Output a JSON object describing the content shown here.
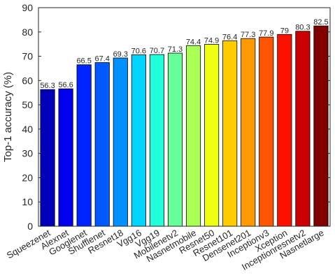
{
  "chart_data": {
    "type": "bar",
    "title": "",
    "xlabel": "",
    "ylabel": "Top-1 accuracy (%)",
    "ylim": [
      0,
      90
    ],
    "yticks": [
      0,
      10,
      20,
      30,
      40,
      50,
      60,
      70,
      80,
      90
    ],
    "grid": false,
    "legend": "none",
    "categories": [
      "Squeezenet",
      "Alexnet",
      "Googlenet",
      "Shufflenet",
      "Resnet18",
      "Vgg16",
      "Vgg19",
      "Mobilenetv2",
      "Nasnetmobile",
      "Resnet50",
      "Resnet101",
      "Densenet201",
      "Inceptionv3",
      "Xception",
      "Inceptionresnetv2",
      "Nasnetlarge"
    ],
    "values": [
      56.3,
      56.6,
      66.5,
      67.4,
      69.3,
      70.6,
      70.7,
      71.3,
      74.4,
      74.9,
      76.4,
      77.3,
      77.9,
      79,
      80.3,
      82.5
    ],
    "value_labels": [
      "56.3",
      "56.6",
      "66.5",
      "67.4",
      "69.3",
      "70.6",
      "70.7",
      "71.3",
      "74.4",
      "74.9",
      "76.4",
      "77.3",
      "77.9",
      "79",
      "80.3",
      "82.5"
    ],
    "bar_colors": [
      "#0000b8",
      "#0000ee",
      "#0024ff",
      "#0058ff",
      "#0090ff",
      "#00d4ff",
      "#22ffdd",
      "#66ff99",
      "#aaff55",
      "#eeff11",
      "#ffcc00",
      "#ff9900",
      "#ff5500",
      "#ff1100",
      "#cc0000",
      "#800000"
    ],
    "axis_color": "#262626"
  }
}
